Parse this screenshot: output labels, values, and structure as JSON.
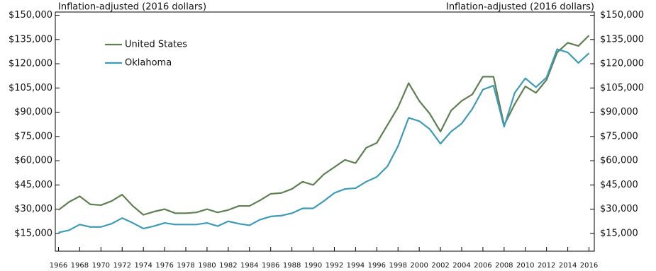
{
  "chart_data": {
    "type": "line",
    "y_label": "Inflation-adjusted (2016 dollars)",
    "y2_label": "Inflation-adjusted (2016 dollars)",
    "x": [
      1966,
      1967,
      1968,
      1969,
      1970,
      1971,
      1972,
      1973,
      1974,
      1975,
      1976,
      1977,
      1978,
      1979,
      1980,
      1981,
      1982,
      1983,
      1984,
      1985,
      1986,
      1987,
      1988,
      1989,
      1990,
      1991,
      1992,
      1993,
      1994,
      1995,
      1996,
      1997,
      1998,
      1999,
      2000,
      2001,
      2002,
      2003,
      2004,
      2005,
      2006,
      2007,
      2008,
      2009,
      2010,
      2011,
      2012,
      2013,
      2014,
      2015,
      2016
    ],
    "series": [
      {
        "name": "United States",
        "color": "#5f7f52",
        "values": [
          29500,
          34500,
          38000,
          33000,
          32500,
          35000,
          39000,
          32000,
          26500,
          28500,
          30000,
          27500,
          27500,
          28000,
          30000,
          28000,
          29500,
          32000,
          32000,
          35500,
          39500,
          40000,
          42500,
          47000,
          45000,
          51500,
          56000,
          60500,
          58500,
          68000,
          71000,
          82000,
          93000,
          108000,
          97000,
          89000,
          78000,
          91000,
          97000,
          101000,
          112000,
          112000,
          82000,
          95000,
          106000,
          102000,
          110000,
          127000,
          133000,
          131000,
          137500
        ]
      },
      {
        "name": "Oklahoma",
        "color": "#3f9bb5",
        "values": [
          15500,
          17000,
          20500,
          19000,
          19000,
          21000,
          24500,
          21500,
          18000,
          19500,
          21500,
          20500,
          20500,
          20500,
          21500,
          19500,
          22500,
          21000,
          20000,
          23500,
          25500,
          26000,
          27500,
          30500,
          30500,
          35000,
          40000,
          42500,
          43000,
          47000,
          50000,
          56500,
          69000,
          86500,
          84500,
          79500,
          70500,
          78000,
          83000,
          92000,
          104000,
          106500,
          81000,
          102000,
          111000,
          105500,
          111500,
          129000,
          127000,
          120500,
          126500
        ]
      }
    ],
    "xlim": [
      1965.7,
      2016.5
    ],
    "xticks": [
      1966,
      1968,
      1970,
      1972,
      1974,
      1976,
      1978,
      1980,
      1982,
      1984,
      1986,
      1988,
      1990,
      1992,
      1994,
      1996,
      1998,
      2000,
      2002,
      2004,
      2006,
      2008,
      2010,
      2012,
      2014,
      2016
    ],
    "ylim": [
      4000,
      152000
    ],
    "yticks": [
      {
        "value": 15000,
        "label": "$15,000"
      },
      {
        "value": 30000,
        "label": "$30,000"
      },
      {
        "value": 45000,
        "label": "$45,000"
      },
      {
        "value": 60000,
        "label": "$60,000"
      },
      {
        "value": 75000,
        "label": "$75,000"
      },
      {
        "value": 90000,
        "label": "$90,000"
      },
      {
        "value": 105000,
        "label": "$105,000"
      },
      {
        "value": 120000,
        "label": "$120,000"
      },
      {
        "value": 135000,
        "label": "$135,000"
      },
      {
        "value": 150000,
        "label": "$150,000"
      }
    ],
    "y2lim": [
      4000,
      152000
    ],
    "y2ticks": [
      {
        "value": 15000,
        "label": "$15,000"
      },
      {
        "value": 30000,
        "label": "$30,000"
      },
      {
        "value": 45000,
        "label": "$45,000"
      },
      {
        "value": 60000,
        "label": "$60,000"
      },
      {
        "value": 75000,
        "label": "$75,000"
      },
      {
        "value": 90000,
        "label": "$90,000"
      },
      {
        "value": 105000,
        "label": "$105,000"
      },
      {
        "value": 120000,
        "label": "$120,000"
      },
      {
        "value": 135000,
        "label": "$135,000"
      },
      {
        "value": 150000,
        "label": "$150,000"
      }
    ],
    "legend": "upper left",
    "grid": false
  }
}
